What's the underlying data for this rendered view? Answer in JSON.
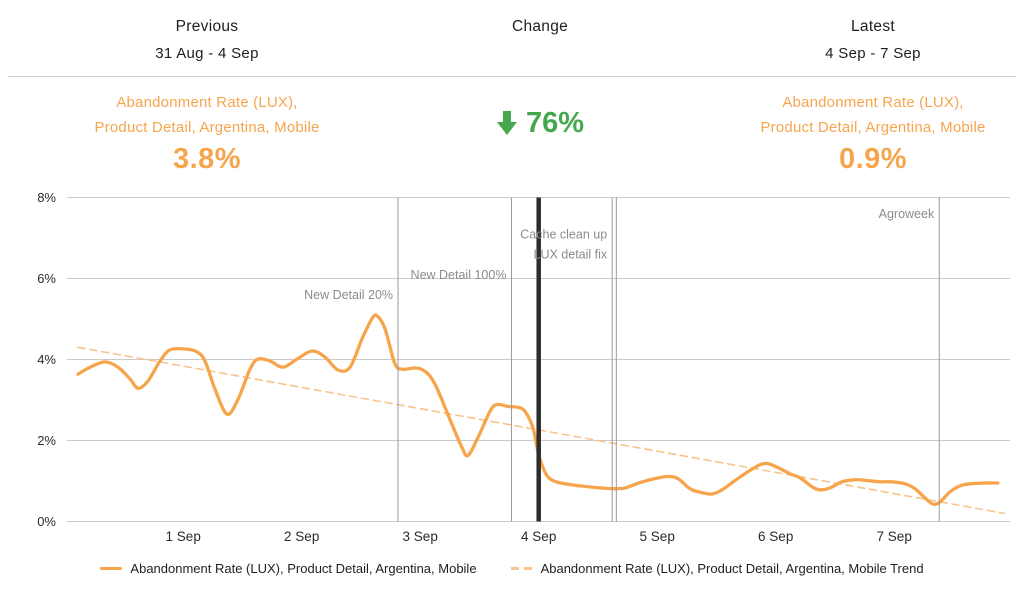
{
  "header": {
    "columns": [
      {
        "title": "Previous",
        "subtitle": "31 Aug - 4 Sep"
      },
      {
        "title": "Change",
        "subtitle": ""
      },
      {
        "title": "Latest",
        "subtitle": "4 Sep - 7 Sep"
      }
    ],
    "previous": {
      "label_line1": "Abandonment Rate (LUX),",
      "label_line2": "Product Detail, Argentina, Mobile",
      "value": "3.8%"
    },
    "change": {
      "direction": "down",
      "value": "76%"
    },
    "latest": {
      "label_line1": "Abandonment Rate (LUX),",
      "label_line2": "Product Detail, Argentina, Mobile",
      "value": "0.9%"
    }
  },
  "colors": {
    "series": "#f7a54d",
    "trend": "#f9c38c",
    "positive_green": "#46a84d",
    "accent_orange": "#f7a54d",
    "gridline": "#cbcbcb",
    "axis_text": "#2b2b2b",
    "annotation_line": "#999999",
    "annotation_text": "#8c8c8c",
    "divider_line": "#2d2d2d"
  },
  "chart_data": {
    "type": "line",
    "title": "",
    "xlabel": "",
    "ylabel": "",
    "x_unit": "days since 31 Aug 00:00",
    "ylim": [
      0,
      8
    ],
    "grid": "horizontal",
    "legend_position": "bottom-center",
    "y_ticks": [
      "0%",
      "2%",
      "4%",
      "6%",
      "8%"
    ],
    "x_ticks": [
      {
        "day": 1,
        "label": "1 Sep"
      },
      {
        "day": 2,
        "label": "2 Sep"
      },
      {
        "day": 3,
        "label": "3 Sep"
      },
      {
        "day": 4,
        "label": "4 Sep"
      },
      {
        "day": 5,
        "label": "5 Sep"
      },
      {
        "day": 6,
        "label": "6 Sep"
      },
      {
        "day": 7,
        "label": "7 Sep"
      }
    ],
    "series": [
      {
        "name": "Abandonment Rate (LUX), Product Detail, Argentina, Mobile",
        "style": "solid",
        "unit": "%",
        "points": [
          [
            0.112,
            3.64
          ],
          [
            0.214,
            3.81
          ],
          [
            0.34,
            3.94
          ],
          [
            0.45,
            3.81
          ],
          [
            0.551,
            3.52
          ],
          [
            0.619,
            3.29
          ],
          [
            0.703,
            3.47
          ],
          [
            0.804,
            3.96
          ],
          [
            0.889,
            4.24
          ],
          [
            1.015,
            4.26
          ],
          [
            1.116,
            4.19
          ],
          [
            1.184,
            3.96
          ],
          [
            1.268,
            3.27
          ],
          [
            1.37,
            2.65
          ],
          [
            1.463,
            3.02
          ],
          [
            1.564,
            3.76
          ],
          [
            1.631,
            4.01
          ],
          [
            1.733,
            3.96
          ],
          [
            1.842,
            3.81
          ],
          [
            1.96,
            4.01
          ],
          [
            2.087,
            4.21
          ],
          [
            2.197,
            4.06
          ],
          [
            2.306,
            3.74
          ],
          [
            2.408,
            3.81
          ],
          [
            2.509,
            4.51
          ],
          [
            2.593,
            5.01
          ],
          [
            2.635,
            5.08
          ],
          [
            2.703,
            4.76
          ],
          [
            2.787,
            3.89
          ],
          [
            2.855,
            3.76
          ],
          [
            2.956,
            3.79
          ],
          [
            3.04,
            3.71
          ],
          [
            3.125,
            3.39
          ],
          [
            3.251,
            2.52
          ],
          [
            3.352,
            1.83
          ],
          [
            3.403,
            1.63
          ],
          [
            3.487,
            2.07
          ],
          [
            3.589,
            2.72
          ],
          [
            3.648,
            2.89
          ],
          [
            3.741,
            2.84
          ],
          [
            3.825,
            2.82
          ],
          [
            3.884,
            2.72
          ],
          [
            3.951,
            2.32
          ],
          [
            4.0,
            1.65
          ],
          [
            4.06,
            1.18
          ],
          [
            4.12,
            1.01
          ],
          [
            4.22,
            0.93
          ],
          [
            4.35,
            0.88
          ],
          [
            4.52,
            0.83
          ],
          [
            4.64,
            0.81
          ],
          [
            4.73,
            0.83
          ],
          [
            4.854,
            0.96
          ],
          [
            4.981,
            1.06
          ],
          [
            5.091,
            1.11
          ],
          [
            5.175,
            1.06
          ],
          [
            5.276,
            0.81
          ],
          [
            5.378,
            0.71
          ],
          [
            5.462,
            0.68
          ],
          [
            5.546,
            0.78
          ],
          [
            5.656,
            1.01
          ],
          [
            5.766,
            1.23
          ],
          [
            5.867,
            1.4
          ],
          [
            5.935,
            1.43
          ],
          [
            6.019,
            1.33
          ],
          [
            6.12,
            1.18
          ],
          [
            6.205,
            1.08
          ],
          [
            6.306,
            0.86
          ],
          [
            6.374,
            0.78
          ],
          [
            6.458,
            0.83
          ],
          [
            6.559,
            0.98
          ],
          [
            6.669,
            1.03
          ],
          [
            6.779,
            1.01
          ],
          [
            6.88,
            0.98
          ],
          [
            6.981,
            0.98
          ],
          [
            7.091,
            0.93
          ],
          [
            7.175,
            0.81
          ],
          [
            7.26,
            0.58
          ],
          [
            7.327,
            0.43
          ],
          [
            7.386,
            0.48
          ],
          [
            7.47,
            0.73
          ],
          [
            7.555,
            0.88
          ],
          [
            7.639,
            0.93
          ],
          [
            7.766,
            0.95
          ],
          [
            7.875,
            0.95
          ]
        ]
      },
      {
        "name": "Abandonment Rate (LUX), Product Detail, Argentina, Mobile Trend",
        "style": "dashed",
        "unit": "%",
        "points": [
          [
            0.112,
            4.3
          ],
          [
            7.93,
            0.2
          ]
        ]
      }
    ],
    "annotations": [
      {
        "day": 2.813,
        "label": "New Detail 20%",
        "row": 4,
        "style": "thin"
      },
      {
        "day": 3.77,
        "label": "New Detail 100%",
        "row": 3,
        "style": "thin"
      },
      {
        "day": 4.0,
        "label": "",
        "style": "thick"
      },
      {
        "day": 4.62,
        "label": "Cache clean up",
        "row": 1,
        "style": "thin"
      },
      {
        "day": 4.655,
        "label": "LUX detail fix",
        "row": 2,
        "style": "thin",
        "anchor_day": 4.62
      },
      {
        "day": 7.38,
        "label": "Agroweek",
        "row": 0,
        "style": "thin"
      }
    ]
  }
}
